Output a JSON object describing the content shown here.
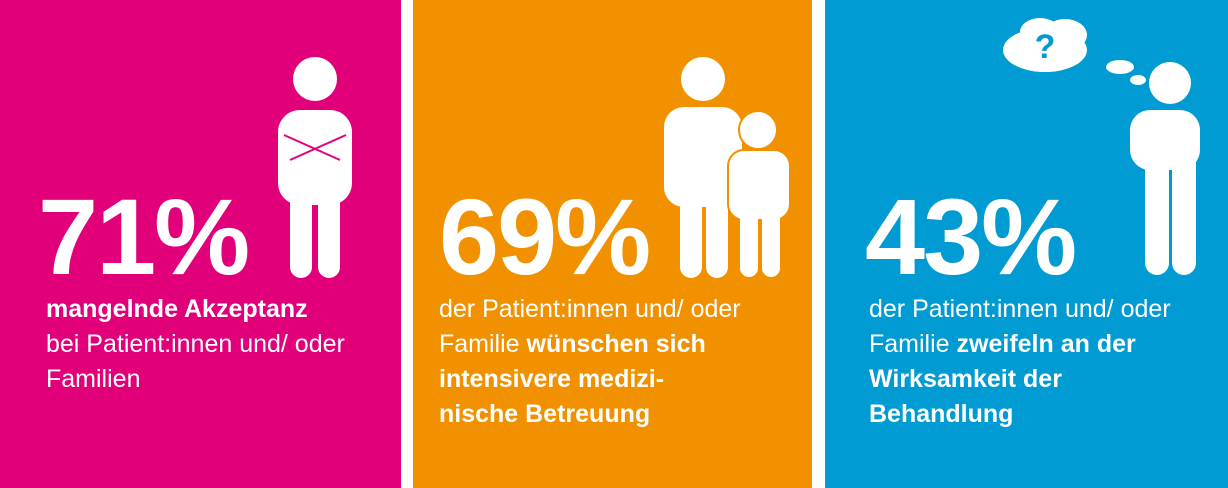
{
  "panels": [
    {
      "color": "#e2007a",
      "percent": "71%",
      "text_bold_1": "mangelnde Akzeptanz",
      "text_normal": "bei Patient:innen und/ oder Familien",
      "icon": "person-arms-crossed-icon"
    },
    {
      "color": "#f29100",
      "percent": "69%",
      "text_normal": "der Patient:innen und/ oder Familie",
      "text_bold": "wünschen sich intensivere medizi- nische Betreuung",
      "icon": "adult-with-child-icon"
    },
    {
      "color": "#009bd2",
      "percent": "43%",
      "text_normal": "der Patient:innen und/ oder Familie",
      "text_bold": "zweifeln an der Wirksamkeit der Behandlung",
      "icon": "thinking-person-question-icon"
    }
  ]
}
